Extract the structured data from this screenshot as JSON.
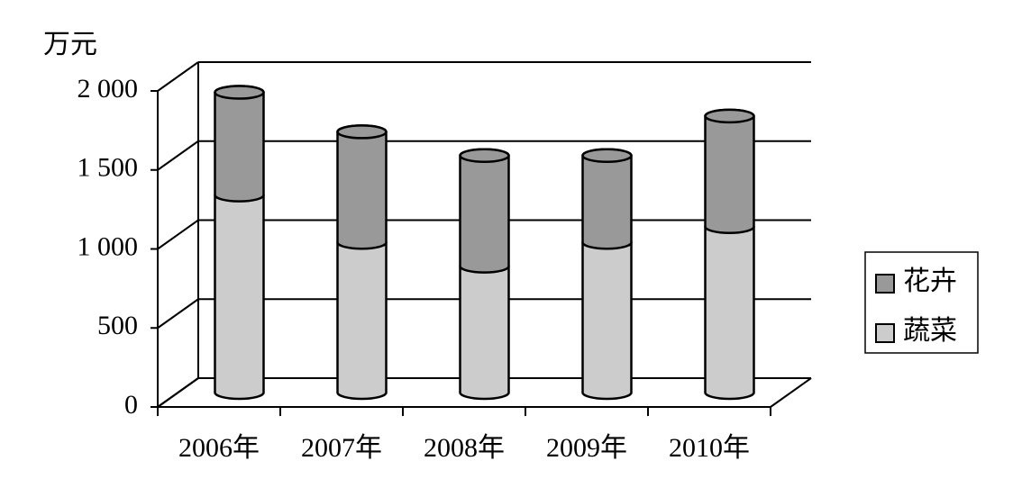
{
  "chart_data": {
    "type": "bar",
    "stacked": true,
    "y_label": "万元",
    "categories": [
      "2006年",
      "2007年",
      "2008年",
      "2009年",
      "2010年"
    ],
    "series": [
      {
        "name": "蔬菜",
        "color": "#cccccc",
        "values": [
          1250,
          950,
          800,
          950,
          1050
        ]
      },
      {
        "name": "花卉",
        "color": "#999999",
        "values": [
          650,
          700,
          700,
          550,
          700
        ]
      }
    ],
    "ylim": [
      0,
      2000
    ],
    "yticks": [
      0,
      500,
      {
        "value": 1000,
        "label": "1 000"
      },
      {
        "value": 1500,
        "label": "1 500"
      },
      {
        "value": 2000,
        "label": "2 000"
      }
    ],
    "grid": true,
    "legend": "right"
  }
}
